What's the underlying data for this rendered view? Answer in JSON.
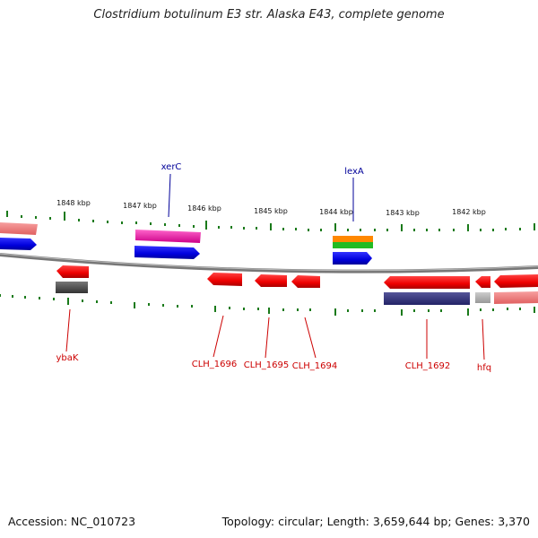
{
  "title": "Clostridium botulinum E3 str. Alaska E43, complete genome",
  "footer": {
    "accession": "Accession: NC_010723",
    "summary": "Topology: circular; Length: 3,659,644 bp; Genes: 3,370"
  },
  "kbp_ticks": [
    "1848 kbp",
    "1847 kbp",
    "1846 kbp",
    "1845 kbp",
    "1844 kbp",
    "1843 kbp",
    "1842 kbp"
  ],
  "labels": {
    "top": [
      "xerC",
      "lexA"
    ],
    "bottom": [
      "ybaK",
      "CLH_1696",
      "CLH_1695",
      "CLH_1694",
      "CLH_1692",
      "hfq"
    ]
  },
  "colors": {
    "forward_gene": "#0000ee",
    "reverse_gene": "#ee0000",
    "top_label": "#000099",
    "bottom_label": "#cc0000",
    "tick": "#1a7a1a",
    "backbone": "#888888"
  }
}
